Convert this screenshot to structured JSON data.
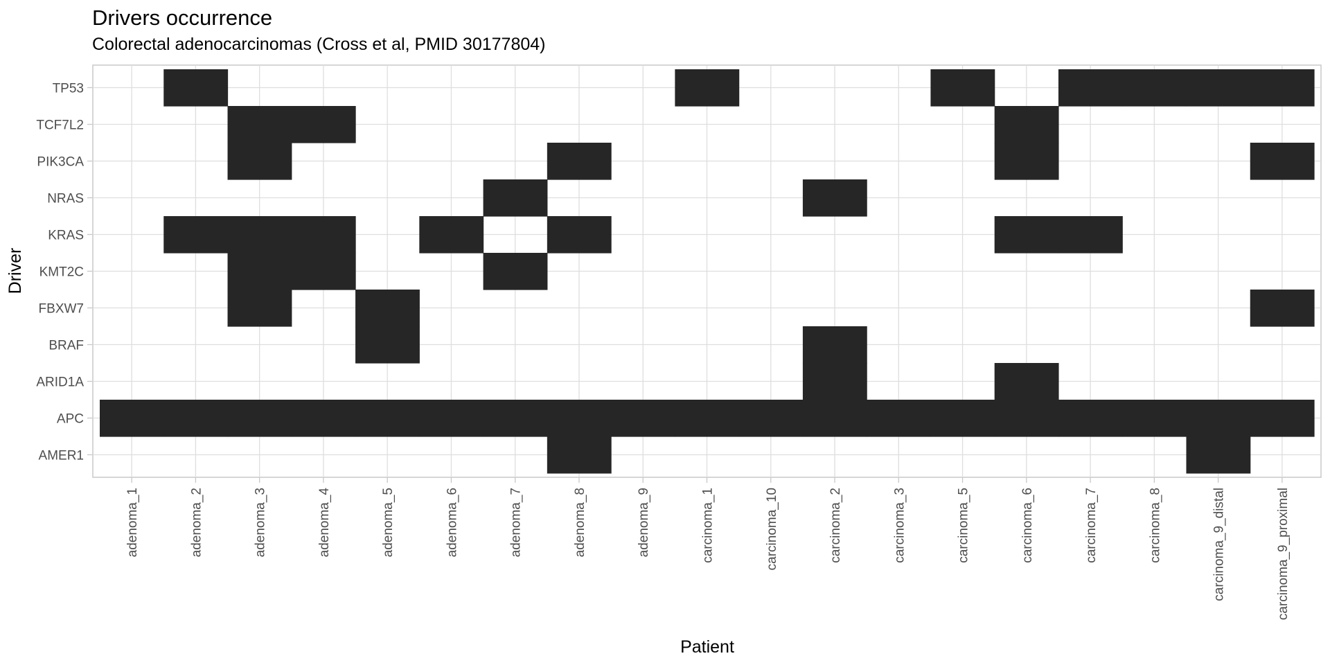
{
  "chart_data": {
    "type": "heatmap",
    "title": "Drivers occurrence",
    "subtitle": "Colorectal adenocarcinomas (Cross et al, PMID 30177804)",
    "xlabel": "Patient",
    "ylabel": "Driver",
    "x": [
      "adenoma_1",
      "adenoma_2",
      "adenoma_3",
      "adenoma_4",
      "adenoma_5",
      "adenoma_6",
      "adenoma_7",
      "adenoma_8",
      "adenoma_9",
      "carcinoma_1",
      "carcinoma_10",
      "carcinoma_2",
      "carcinoma_3",
      "carcinoma_5",
      "carcinoma_6",
      "carcinoma_7",
      "carcinoma_8",
      "carcinoma_9_distal",
      "carcinoma_9_proximal"
    ],
    "y": [
      "TP53",
      "TCF7L2",
      "PIK3CA",
      "NRAS",
      "KRAS",
      "KMT2C",
      "FBXW7",
      "BRAF",
      "ARID1A",
      "APC",
      "AMER1"
    ],
    "occurrences": [
      {
        "driver": "TP53",
        "patients": [
          "adenoma_2",
          "carcinoma_1",
          "carcinoma_5",
          "carcinoma_7",
          "carcinoma_8",
          "carcinoma_9_distal",
          "carcinoma_9_proximal"
        ]
      },
      {
        "driver": "TCF7L2",
        "patients": [
          "adenoma_3",
          "adenoma_4",
          "carcinoma_6"
        ]
      },
      {
        "driver": "PIK3CA",
        "patients": [
          "adenoma_3",
          "adenoma_8",
          "carcinoma_6",
          "carcinoma_9_proximal"
        ]
      },
      {
        "driver": "NRAS",
        "patients": [
          "adenoma_7",
          "carcinoma_2"
        ]
      },
      {
        "driver": "KRAS",
        "patients": [
          "adenoma_2",
          "adenoma_3",
          "adenoma_4",
          "adenoma_6",
          "adenoma_8",
          "carcinoma_6",
          "carcinoma_7"
        ]
      },
      {
        "driver": "KMT2C",
        "patients": [
          "adenoma_3",
          "adenoma_4",
          "adenoma_7"
        ]
      },
      {
        "driver": "FBXW7",
        "patients": [
          "adenoma_3",
          "adenoma_5",
          "carcinoma_9_proximal"
        ]
      },
      {
        "driver": "BRAF",
        "patients": [
          "adenoma_5",
          "carcinoma_2"
        ]
      },
      {
        "driver": "ARID1A",
        "patients": [
          "carcinoma_2",
          "carcinoma_6"
        ]
      },
      {
        "driver": "APC",
        "patients": [
          "adenoma_1",
          "adenoma_2",
          "adenoma_3",
          "adenoma_4",
          "adenoma_5",
          "adenoma_6",
          "adenoma_7",
          "adenoma_8",
          "adenoma_9",
          "carcinoma_1",
          "carcinoma_10",
          "carcinoma_2",
          "carcinoma_3",
          "carcinoma_5",
          "carcinoma_6",
          "carcinoma_7",
          "carcinoma_8",
          "carcinoma_9_distal",
          "carcinoma_9_proximal"
        ]
      },
      {
        "driver": "AMER1",
        "patients": [
          "adenoma_8",
          "carcinoma_9_distal"
        ]
      }
    ],
    "fill_color": "#262626",
    "grid": true
  }
}
